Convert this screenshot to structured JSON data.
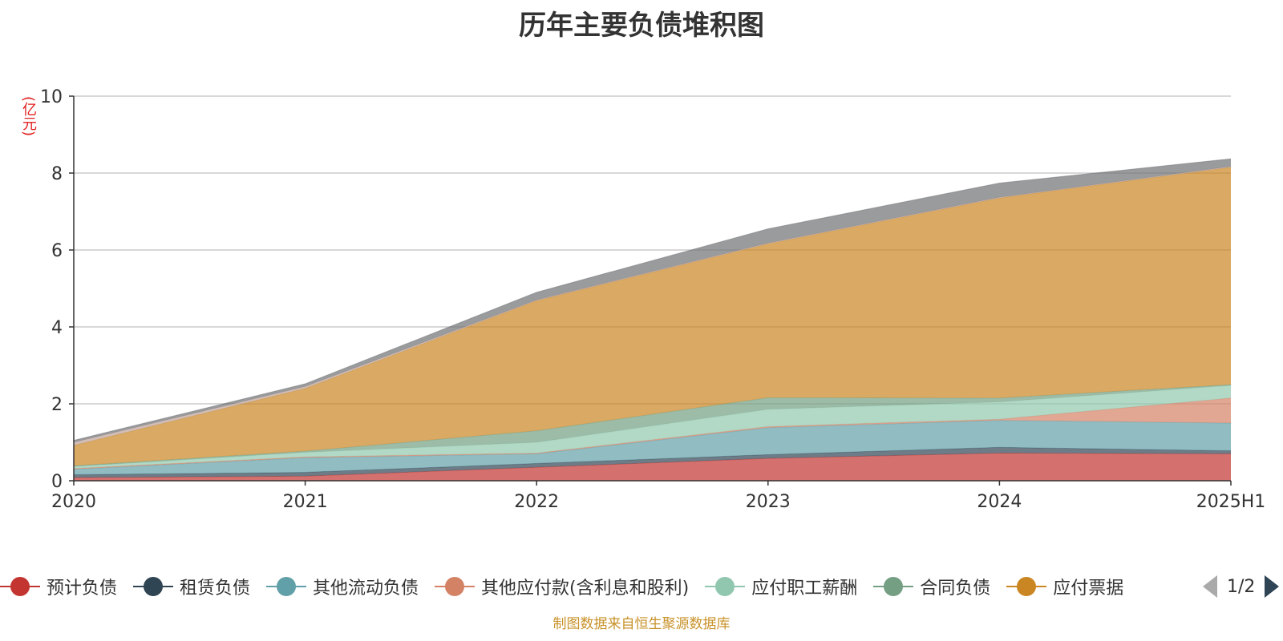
{
  "title": "历年主要负债堆积图",
  "unit": "(亿元)",
  "source": "制图数据来自恒生聚源数据库",
  "pager": {
    "text": "1/2"
  },
  "chart_data": {
    "type": "area",
    "stacked": true,
    "x": [
      "2020",
      "2021",
      "2022",
      "2023",
      "2024",
      "2025H1"
    ],
    "ylim": [
      0,
      10
    ],
    "yticks": [
      0,
      2,
      4,
      6,
      8,
      10
    ],
    "grid": true,
    "legend_position": "bottom",
    "series": [
      {
        "name": "预计负债",
        "color": "#c23531",
        "values": [
          0.08,
          0.12,
          0.35,
          0.58,
          0.72,
          0.7
        ]
      },
      {
        "name": "租赁负债",
        "color": "#2f4554",
        "values": [
          0.08,
          0.1,
          0.1,
          0.1,
          0.15,
          0.08
        ]
      },
      {
        "name": "其他流动负债",
        "color": "#61a0a8",
        "values": [
          0.14,
          0.38,
          0.25,
          0.7,
          0.7,
          0.72
        ]
      },
      {
        "name": "其他应付款(含利息和股利)",
        "color": "#d48265",
        "values": [
          0.02,
          0.02,
          0.02,
          0.03,
          0.03,
          0.65
        ]
      },
      {
        "name": "应付职工薪酬",
        "color": "#91c7ae",
        "values": [
          0.05,
          0.12,
          0.28,
          0.45,
          0.45,
          0.33
        ]
      },
      {
        "name": "合同负债",
        "color": "#749f83",
        "values": [
          0.02,
          0.03,
          0.3,
          0.3,
          0.1,
          0.02
        ]
      },
      {
        "name": "应付票据",
        "color": "#ca8622",
        "values": [
          0.53,
          1.63,
          3.38,
          4.0,
          5.2,
          5.65
        ]
      },
      {
        "name": "",
        "color": "#bda29a",
        "values": [
          0.08,
          0.05,
          0.02,
          0.02,
          0.02,
          0.02
        ]
      },
      {
        "name": "",
        "color": "#6e7074",
        "values": [
          0.05,
          0.07,
          0.2,
          0.37,
          0.37,
          0.2
        ]
      }
    ],
    "legend_visible_count": 7
  }
}
